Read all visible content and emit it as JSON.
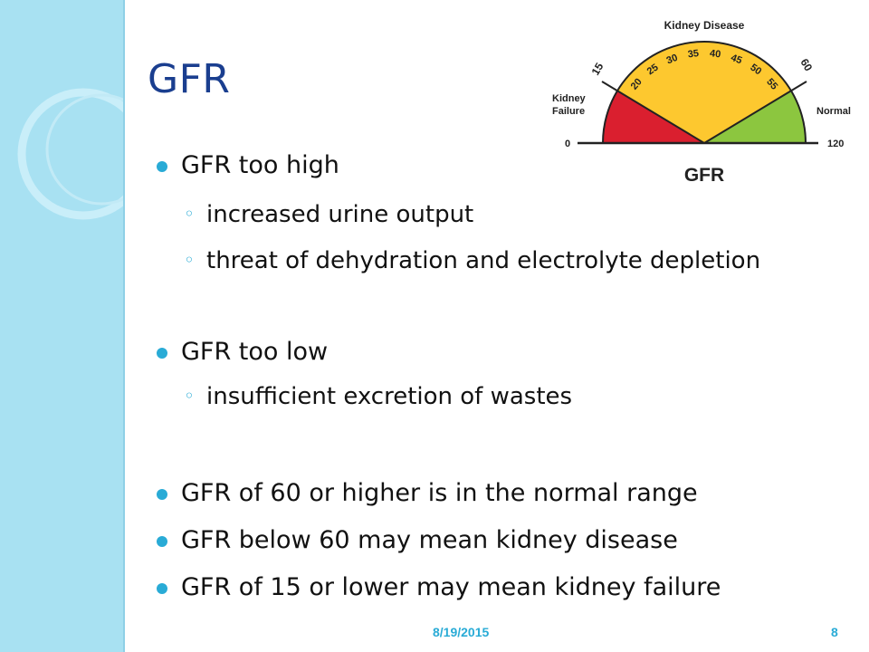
{
  "slide": {
    "title": "GFR",
    "bullets": [
      {
        "text": "GFR too high"
      },
      {
        "text": "GFR too low"
      },
      {
        "text": "GFR of 60 or higher is in the normal range"
      },
      {
        "text": "GFR below 60 may mean kidney disease"
      },
      {
        "text": "GFR of 15 or lower may mean kidney failure"
      }
    ],
    "sub_bullets": [
      {
        "text": " increased urine output"
      },
      {
        "text": "threat of dehydration and electrolyte depletion"
      },
      {
        "text": " insufficient excretion of wastes"
      }
    ],
    "footer": {
      "date": "8/19/2015",
      "page": "8"
    }
  },
  "gauge": {
    "title": "Kidney Disease",
    "label_left_1": "Kidney",
    "label_left_2": "Failure",
    "label_right": "Normal",
    "caption": "GFR",
    "min_label": "0",
    "max_label": "120",
    "marker_15": "15",
    "marker_60": "60",
    "ticks": [
      "20",
      "25",
      "30",
      "35",
      "40",
      "45",
      "50",
      "55"
    ],
    "colors": {
      "failure": "#da1f2f",
      "disease": "#fdc82f",
      "normal": "#8cc63f"
    }
  }
}
